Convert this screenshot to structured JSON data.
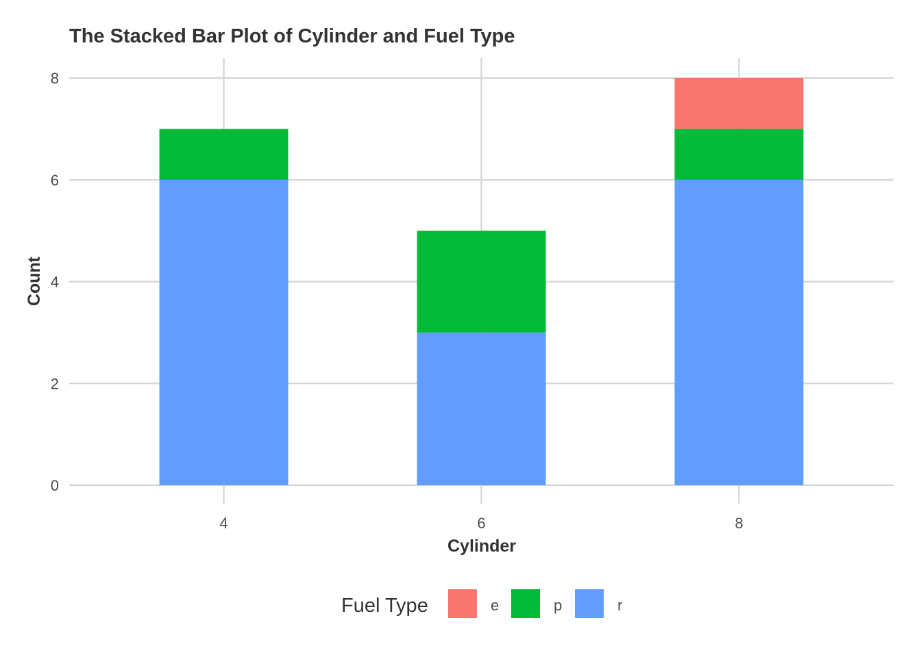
{
  "chart_data": {
    "type": "bar",
    "stacked": true,
    "title": "The Stacked Bar Plot of Cylinder and Fuel Type",
    "xlabel": "Cylinder",
    "ylabel": "Count",
    "categories": [
      "4",
      "6",
      "8"
    ],
    "series": [
      {
        "name": "r",
        "values": [
          6,
          3,
          6
        ],
        "color": "#619CFF"
      },
      {
        "name": "p",
        "values": [
          1,
          2,
          1
        ],
        "color": "#00BA38"
      },
      {
        "name": "e",
        "values": [
          0,
          0,
          1
        ],
        "color": "#F8766D"
      }
    ],
    "ylim": [
      0,
      8
    ],
    "yticks": [
      "0",
      "2",
      "4",
      "6",
      "8"
    ],
    "grid": true,
    "legend": {
      "title": "Fuel Type",
      "position": "bottom",
      "items": [
        {
          "label": "e",
          "color": "#F8766D"
        },
        {
          "label": "p",
          "color": "#00BA38"
        },
        {
          "label": "r",
          "color": "#619CFF"
        }
      ]
    }
  }
}
